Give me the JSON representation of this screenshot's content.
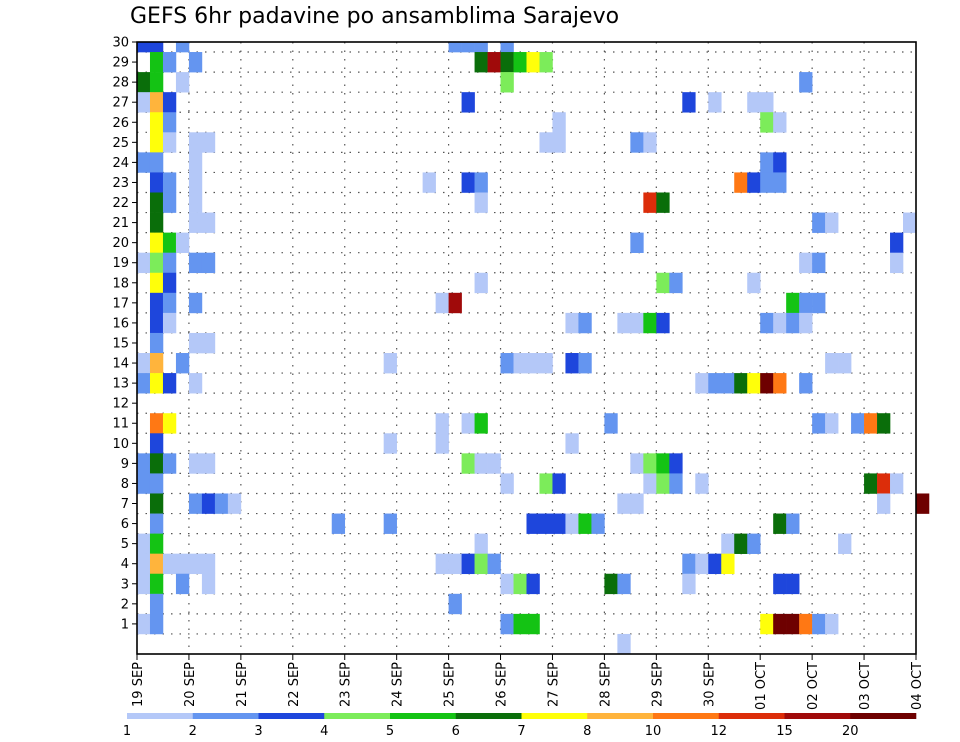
{
  "chart_data": {
    "type": "heatmap",
    "title": "GEFS 6hr padavine po ansamblima Sarajevo",
    "x_tick_labels": [
      "19 SEP",
      "20 SEP",
      "21 SEP",
      "22 SEP",
      "23 SEP",
      "24 SEP",
      "25 SEP",
      "26 SEP",
      "27 SEP",
      "28 SEP",
      "29 SEP",
      "30 SEP",
      "01 OCT",
      "02 OCT",
      "03 OCT",
      "04 OCT"
    ],
    "y_tick_labels": [
      "1",
      "2",
      "3",
      "4",
      "5",
      "6",
      "7",
      "8",
      "9",
      "10",
      "11",
      "12",
      "13",
      "14",
      "15",
      "16",
      "17",
      "18",
      "19",
      "20",
      "21",
      "22",
      "23",
      "24",
      "25",
      "26",
      "27",
      "28",
      "29",
      "30"
    ],
    "time_step_hours": 6,
    "legend_labels": [
      "1",
      "2",
      "3",
      "4",
      "5",
      "6",
      "7",
      "8",
      "10",
      "12",
      "15",
      "20"
    ],
    "legend_colors": [
      "#b4c8f8",
      "#6495f0",
      "#1e46dc",
      "#7cec5a",
      "#14c314",
      "#0a6e0a",
      "#ffff0a",
      "#ffb43c",
      "#ff7814",
      "#dc2d0a",
      "#a00a0a",
      "#6e0000"
    ],
    "grid": true,
    "cells": [
      {
        "member": 30,
        "step": 1,
        "cls": 2
      },
      {
        "member": 30,
        "step": 2,
        "cls": 2
      },
      {
        "member": 30,
        "step": 4,
        "cls": 1
      },
      {
        "member": 30,
        "step": 25,
        "cls": 1
      },
      {
        "member": 30,
        "step": 26,
        "cls": 1
      },
      {
        "member": 30,
        "step": 27,
        "cls": 1
      },
      {
        "member": 30,
        "step": 29,
        "cls": 1
      },
      {
        "member": 29,
        "step": 2,
        "cls": 4
      },
      {
        "member": 29,
        "step": 3,
        "cls": 1
      },
      {
        "member": 29,
        "step": 5,
        "cls": 1
      },
      {
        "member": 29,
        "step": 27,
        "cls": 5
      },
      {
        "member": 29,
        "step": 28,
        "cls": 10
      },
      {
        "member": 29,
        "step": 29,
        "cls": 5
      },
      {
        "member": 29,
        "step": 30,
        "cls": 4
      },
      {
        "member": 29,
        "step": 31,
        "cls": 6
      },
      {
        "member": 29,
        "step": 32,
        "cls": 3
      },
      {
        "member": 28,
        "step": 1,
        "cls": 5
      },
      {
        "member": 28,
        "step": 2,
        "cls": 4
      },
      {
        "member": 28,
        "step": 4,
        "cls": 0
      },
      {
        "member": 28,
        "step": 29,
        "cls": 3
      },
      {
        "member": 28,
        "step": 52,
        "cls": 1
      },
      {
        "member": 27,
        "step": 1,
        "cls": 0
      },
      {
        "member": 27,
        "step": 2,
        "cls": 7
      },
      {
        "member": 27,
        "step": 3,
        "cls": 2
      },
      {
        "member": 27,
        "step": 26,
        "cls": 2
      },
      {
        "member": 27,
        "step": 43,
        "cls": 2
      },
      {
        "member": 27,
        "step": 45,
        "cls": 0
      },
      {
        "member": 27,
        "step": 48,
        "cls": 0
      },
      {
        "member": 27,
        "step": 49,
        "cls": 0
      },
      {
        "member": 26,
        "step": 2,
        "cls": 6
      },
      {
        "member": 26,
        "step": 3,
        "cls": 1
      },
      {
        "member": 26,
        "step": 33,
        "cls": 0
      },
      {
        "member": 26,
        "step": 49,
        "cls": 3
      },
      {
        "member": 26,
        "step": 50,
        "cls": 0
      },
      {
        "member": 25,
        "step": 2,
        "cls": 6
      },
      {
        "member": 25,
        "step": 3,
        "cls": 0
      },
      {
        "member": 25,
        "step": 5,
        "cls": 0
      },
      {
        "member": 25,
        "step": 6,
        "cls": 0
      },
      {
        "member": 25,
        "step": 32,
        "cls": 0
      },
      {
        "member": 25,
        "step": 33,
        "cls": 0
      },
      {
        "member": 25,
        "step": 39,
        "cls": 1
      },
      {
        "member": 25,
        "step": 40,
        "cls": 0
      },
      {
        "member": 24,
        "step": 1,
        "cls": 1
      },
      {
        "member": 24,
        "step": 2,
        "cls": 1
      },
      {
        "member": 24,
        "step": 5,
        "cls": 0
      },
      {
        "member": 24,
        "step": 49,
        "cls": 1
      },
      {
        "member": 24,
        "step": 50,
        "cls": 2
      },
      {
        "member": 23,
        "step": 2,
        "cls": 2
      },
      {
        "member": 23,
        "step": 3,
        "cls": 1
      },
      {
        "member": 23,
        "step": 5,
        "cls": 0
      },
      {
        "member": 23,
        "step": 23,
        "cls": 0
      },
      {
        "member": 23,
        "step": 26,
        "cls": 2
      },
      {
        "member": 23,
        "step": 27,
        "cls": 1
      },
      {
        "member": 23,
        "step": 47,
        "cls": 8
      },
      {
        "member": 23,
        "step": 48,
        "cls": 2
      },
      {
        "member": 23,
        "step": 49,
        "cls": 1
      },
      {
        "member": 23,
        "step": 50,
        "cls": 1
      },
      {
        "member": 22,
        "step": 2,
        "cls": 5
      },
      {
        "member": 22,
        "step": 3,
        "cls": 1
      },
      {
        "member": 22,
        "step": 5,
        "cls": 0
      },
      {
        "member": 22,
        "step": 27,
        "cls": 0
      },
      {
        "member": 22,
        "step": 40,
        "cls": 9
      },
      {
        "member": 22,
        "step": 41,
        "cls": 5
      },
      {
        "member": 21,
        "step": 2,
        "cls": 5
      },
      {
        "member": 21,
        "step": 5,
        "cls": 0
      },
      {
        "member": 21,
        "step": 6,
        "cls": 0
      },
      {
        "member": 21,
        "step": 53,
        "cls": 1
      },
      {
        "member": 21,
        "step": 54,
        "cls": 0
      },
      {
        "member": 21,
        "step": 60,
        "cls": 0
      },
      {
        "member": 20,
        "step": 2,
        "cls": 6
      },
      {
        "member": 20,
        "step": 3,
        "cls": 4
      },
      {
        "member": 20,
        "step": 4,
        "cls": 0
      },
      {
        "member": 20,
        "step": 39,
        "cls": 1
      },
      {
        "member": 20,
        "step": 59,
        "cls": 2
      },
      {
        "member": 19,
        "step": 1,
        "cls": 0
      },
      {
        "member": 19,
        "step": 2,
        "cls": 3
      },
      {
        "member": 19,
        "step": 3,
        "cls": 1
      },
      {
        "member": 19,
        "step": 5,
        "cls": 1
      },
      {
        "member": 19,
        "step": 6,
        "cls": 1
      },
      {
        "member": 19,
        "step": 52,
        "cls": 0
      },
      {
        "member": 19,
        "step": 53,
        "cls": 1
      },
      {
        "member": 19,
        "step": 59,
        "cls": 0
      },
      {
        "member": 18,
        "step": 2,
        "cls": 6
      },
      {
        "member": 18,
        "step": 3,
        "cls": 2
      },
      {
        "member": 18,
        "step": 27,
        "cls": 0
      },
      {
        "member": 18,
        "step": 41,
        "cls": 3
      },
      {
        "member": 18,
        "step": 42,
        "cls": 1
      },
      {
        "member": 18,
        "step": 48,
        "cls": 0
      },
      {
        "member": 17,
        "step": 2,
        "cls": 2
      },
      {
        "member": 17,
        "step": 3,
        "cls": 1
      },
      {
        "member": 17,
        "step": 5,
        "cls": 1
      },
      {
        "member": 17,
        "step": 24,
        "cls": 0
      },
      {
        "member": 17,
        "step": 25,
        "cls": 10
      },
      {
        "member": 17,
        "step": 51,
        "cls": 4
      },
      {
        "member": 17,
        "step": 52,
        "cls": 1
      },
      {
        "member": 17,
        "step": 53,
        "cls": 1
      },
      {
        "member": 16,
        "step": 2,
        "cls": 2
      },
      {
        "member": 16,
        "step": 3,
        "cls": 0
      },
      {
        "member": 16,
        "step": 34,
        "cls": 0
      },
      {
        "member": 16,
        "step": 35,
        "cls": 1
      },
      {
        "member": 16,
        "step": 38,
        "cls": 0
      },
      {
        "member": 16,
        "step": 39,
        "cls": 0
      },
      {
        "member": 16,
        "step": 40,
        "cls": 4
      },
      {
        "member": 16,
        "step": 41,
        "cls": 2
      },
      {
        "member": 16,
        "step": 49,
        "cls": 1
      },
      {
        "member": 16,
        "step": 50,
        "cls": 0
      },
      {
        "member": 16,
        "step": 51,
        "cls": 1
      },
      {
        "member": 16,
        "step": 52,
        "cls": 0
      },
      {
        "member": 15,
        "step": 2,
        "cls": 1
      },
      {
        "member": 15,
        "step": 5,
        "cls": 0
      },
      {
        "member": 15,
        "step": 6,
        "cls": 0
      },
      {
        "member": 14,
        "step": 1,
        "cls": 0
      },
      {
        "member": 14,
        "step": 2,
        "cls": 7
      },
      {
        "member": 14,
        "step": 4,
        "cls": 1
      },
      {
        "member": 14,
        "step": 20,
        "cls": 0
      },
      {
        "member": 14,
        "step": 29,
        "cls": 1
      },
      {
        "member": 14,
        "step": 30,
        "cls": 0
      },
      {
        "member": 14,
        "step": 31,
        "cls": 0
      },
      {
        "member": 14,
        "step": 32,
        "cls": 0
      },
      {
        "member": 14,
        "step": 34,
        "cls": 2
      },
      {
        "member": 14,
        "step": 35,
        "cls": 1
      },
      {
        "member": 14,
        "step": 54,
        "cls": 0
      },
      {
        "member": 14,
        "step": 55,
        "cls": 0
      },
      {
        "member": 13,
        "step": 1,
        "cls": 1
      },
      {
        "member": 13,
        "step": 2,
        "cls": 6
      },
      {
        "member": 13,
        "step": 3,
        "cls": 2
      },
      {
        "member": 13,
        "step": 5,
        "cls": 0
      },
      {
        "member": 13,
        "step": 44,
        "cls": 0
      },
      {
        "member": 13,
        "step": 45,
        "cls": 1
      },
      {
        "member": 13,
        "step": 46,
        "cls": 1
      },
      {
        "member": 13,
        "step": 47,
        "cls": 5
      },
      {
        "member": 13,
        "step": 48,
        "cls": 6
      },
      {
        "member": 13,
        "step": 49,
        "cls": 11
      },
      {
        "member": 13,
        "step": 50,
        "cls": 8
      },
      {
        "member": 13,
        "step": 52,
        "cls": 1
      },
      {
        "member": 11,
        "step": 2,
        "cls": 8
      },
      {
        "member": 11,
        "step": 3,
        "cls": 6
      },
      {
        "member": 11,
        "step": 24,
        "cls": 0
      },
      {
        "member": 11,
        "step": 26,
        "cls": 0
      },
      {
        "member": 11,
        "step": 27,
        "cls": 4
      },
      {
        "member": 11,
        "step": 37,
        "cls": 1
      },
      {
        "member": 11,
        "step": 53,
        "cls": 1
      },
      {
        "member": 11,
        "step": 54,
        "cls": 0
      },
      {
        "member": 11,
        "step": 56,
        "cls": 1
      },
      {
        "member": 11,
        "step": 57,
        "cls": 8
      },
      {
        "member": 11,
        "step": 58,
        "cls": 5
      },
      {
        "member": 10,
        "step": 2,
        "cls": 2
      },
      {
        "member": 10,
        "step": 20,
        "cls": 0
      },
      {
        "member": 10,
        "step": 24,
        "cls": 0
      },
      {
        "member": 10,
        "step": 34,
        "cls": 0
      },
      {
        "member": 9,
        "step": 1,
        "cls": 1
      },
      {
        "member": 9,
        "step": 2,
        "cls": 5
      },
      {
        "member": 9,
        "step": 3,
        "cls": 1
      },
      {
        "member": 9,
        "step": 5,
        "cls": 0
      },
      {
        "member": 9,
        "step": 6,
        "cls": 0
      },
      {
        "member": 9,
        "step": 26,
        "cls": 3
      },
      {
        "member": 9,
        "step": 27,
        "cls": 0
      },
      {
        "member": 9,
        "step": 28,
        "cls": 0
      },
      {
        "member": 9,
        "step": 39,
        "cls": 0
      },
      {
        "member": 9,
        "step": 40,
        "cls": 3
      },
      {
        "member": 9,
        "step": 41,
        "cls": 4
      },
      {
        "member": 9,
        "step": 42,
        "cls": 2
      },
      {
        "member": 8,
        "step": 1,
        "cls": 1
      },
      {
        "member": 8,
        "step": 2,
        "cls": 1
      },
      {
        "member": 8,
        "step": 29,
        "cls": 0
      },
      {
        "member": 8,
        "step": 32,
        "cls": 3
      },
      {
        "member": 8,
        "step": 33,
        "cls": 2
      },
      {
        "member": 8,
        "step": 40,
        "cls": 0
      },
      {
        "member": 8,
        "step": 41,
        "cls": 3
      },
      {
        "member": 8,
        "step": 42,
        "cls": 1
      },
      {
        "member": 8,
        "step": 44,
        "cls": 0
      },
      {
        "member": 8,
        "step": 57,
        "cls": 5
      },
      {
        "member": 8,
        "step": 58,
        "cls": 9
      },
      {
        "member": 8,
        "step": 59,
        "cls": 0
      },
      {
        "member": 7,
        "step": 2,
        "cls": 5
      },
      {
        "member": 7,
        "step": 5,
        "cls": 1
      },
      {
        "member": 7,
        "step": 6,
        "cls": 2
      },
      {
        "member": 7,
        "step": 7,
        "cls": 1
      },
      {
        "member": 7,
        "step": 8,
        "cls": 0
      },
      {
        "member": 7,
        "step": 38,
        "cls": 0
      },
      {
        "member": 7,
        "step": 39,
        "cls": 0
      },
      {
        "member": 7,
        "step": 58,
        "cls": 0
      },
      {
        "member": 7,
        "step": 61,
        "cls": 11
      },
      {
        "member": 6,
        "step": 2,
        "cls": 1
      },
      {
        "member": 6,
        "step": 16,
        "cls": 1
      },
      {
        "member": 6,
        "step": 20,
        "cls": 1
      },
      {
        "member": 6,
        "step": 31,
        "cls": 2
      },
      {
        "member": 6,
        "step": 32,
        "cls": 2
      },
      {
        "member": 6,
        "step": 33,
        "cls": 2
      },
      {
        "member": 6,
        "step": 34,
        "cls": 0
      },
      {
        "member": 6,
        "step": 35,
        "cls": 4
      },
      {
        "member": 6,
        "step": 36,
        "cls": 1
      },
      {
        "member": 6,
        "step": 50,
        "cls": 5
      },
      {
        "member": 6,
        "step": 51,
        "cls": 1
      },
      {
        "member": 5,
        "step": 1,
        "cls": 0
      },
      {
        "member": 5,
        "step": 2,
        "cls": 4
      },
      {
        "member": 5,
        "step": 27,
        "cls": 0
      },
      {
        "member": 5,
        "step": 46,
        "cls": 0
      },
      {
        "member": 5,
        "step": 47,
        "cls": 5
      },
      {
        "member": 5,
        "step": 48,
        "cls": 1
      },
      {
        "member": 5,
        "step": 55,
        "cls": 0
      },
      {
        "member": 4,
        "step": 1,
        "cls": 0
      },
      {
        "member": 4,
        "step": 2,
        "cls": 7
      },
      {
        "member": 4,
        "step": 3,
        "cls": 0
      },
      {
        "member": 4,
        "step": 4,
        "cls": 0
      },
      {
        "member": 4,
        "step": 5,
        "cls": 0
      },
      {
        "member": 4,
        "step": 6,
        "cls": 0
      },
      {
        "member": 4,
        "step": 24,
        "cls": 0
      },
      {
        "member": 4,
        "step": 25,
        "cls": 0
      },
      {
        "member": 4,
        "step": 26,
        "cls": 2
      },
      {
        "member": 4,
        "step": 27,
        "cls": 3
      },
      {
        "member": 4,
        "step": 28,
        "cls": 1
      },
      {
        "member": 4,
        "step": 43,
        "cls": 1
      },
      {
        "member": 4,
        "step": 44,
        "cls": 0
      },
      {
        "member": 4,
        "step": 45,
        "cls": 2
      },
      {
        "member": 4,
        "step": 46,
        "cls": 6
      },
      {
        "member": 3,
        "step": 1,
        "cls": 0
      },
      {
        "member": 3,
        "step": 2,
        "cls": 4
      },
      {
        "member": 3,
        "step": 4,
        "cls": 1
      },
      {
        "member": 3,
        "step": 6,
        "cls": 0
      },
      {
        "member": 3,
        "step": 29,
        "cls": 0
      },
      {
        "member": 3,
        "step": 30,
        "cls": 3
      },
      {
        "member": 3,
        "step": 31,
        "cls": 2
      },
      {
        "member": 3,
        "step": 37,
        "cls": 5
      },
      {
        "member": 3,
        "step": 38,
        "cls": 1
      },
      {
        "member": 3,
        "step": 43,
        "cls": 0
      },
      {
        "member": 3,
        "step": 50,
        "cls": 2
      },
      {
        "member": 3,
        "step": 51,
        "cls": 2
      },
      {
        "member": 2,
        "step": 2,
        "cls": 1
      },
      {
        "member": 2,
        "step": 25,
        "cls": 1
      },
      {
        "member": 1,
        "step": 1,
        "cls": 0
      },
      {
        "member": 1,
        "step": 2,
        "cls": 1
      },
      {
        "member": 1,
        "step": 29,
        "cls": 1
      },
      {
        "member": 1,
        "step": 30,
        "cls": 4
      },
      {
        "member": 1,
        "step": 31,
        "cls": 4
      },
      {
        "member": 1,
        "step": 49,
        "cls": 6
      },
      {
        "member": 1,
        "step": 50,
        "cls": 11
      },
      {
        "member": 1,
        "step": 51,
        "cls": 11
      },
      {
        "member": 1,
        "step": 52,
        "cls": 8
      },
      {
        "member": 1,
        "step": 53,
        "cls": 1
      },
      {
        "member": 1,
        "step": 54,
        "cls": 0
      },
      {
        "member": 0,
        "step": 38,
        "cls": 0
      }
    ]
  }
}
